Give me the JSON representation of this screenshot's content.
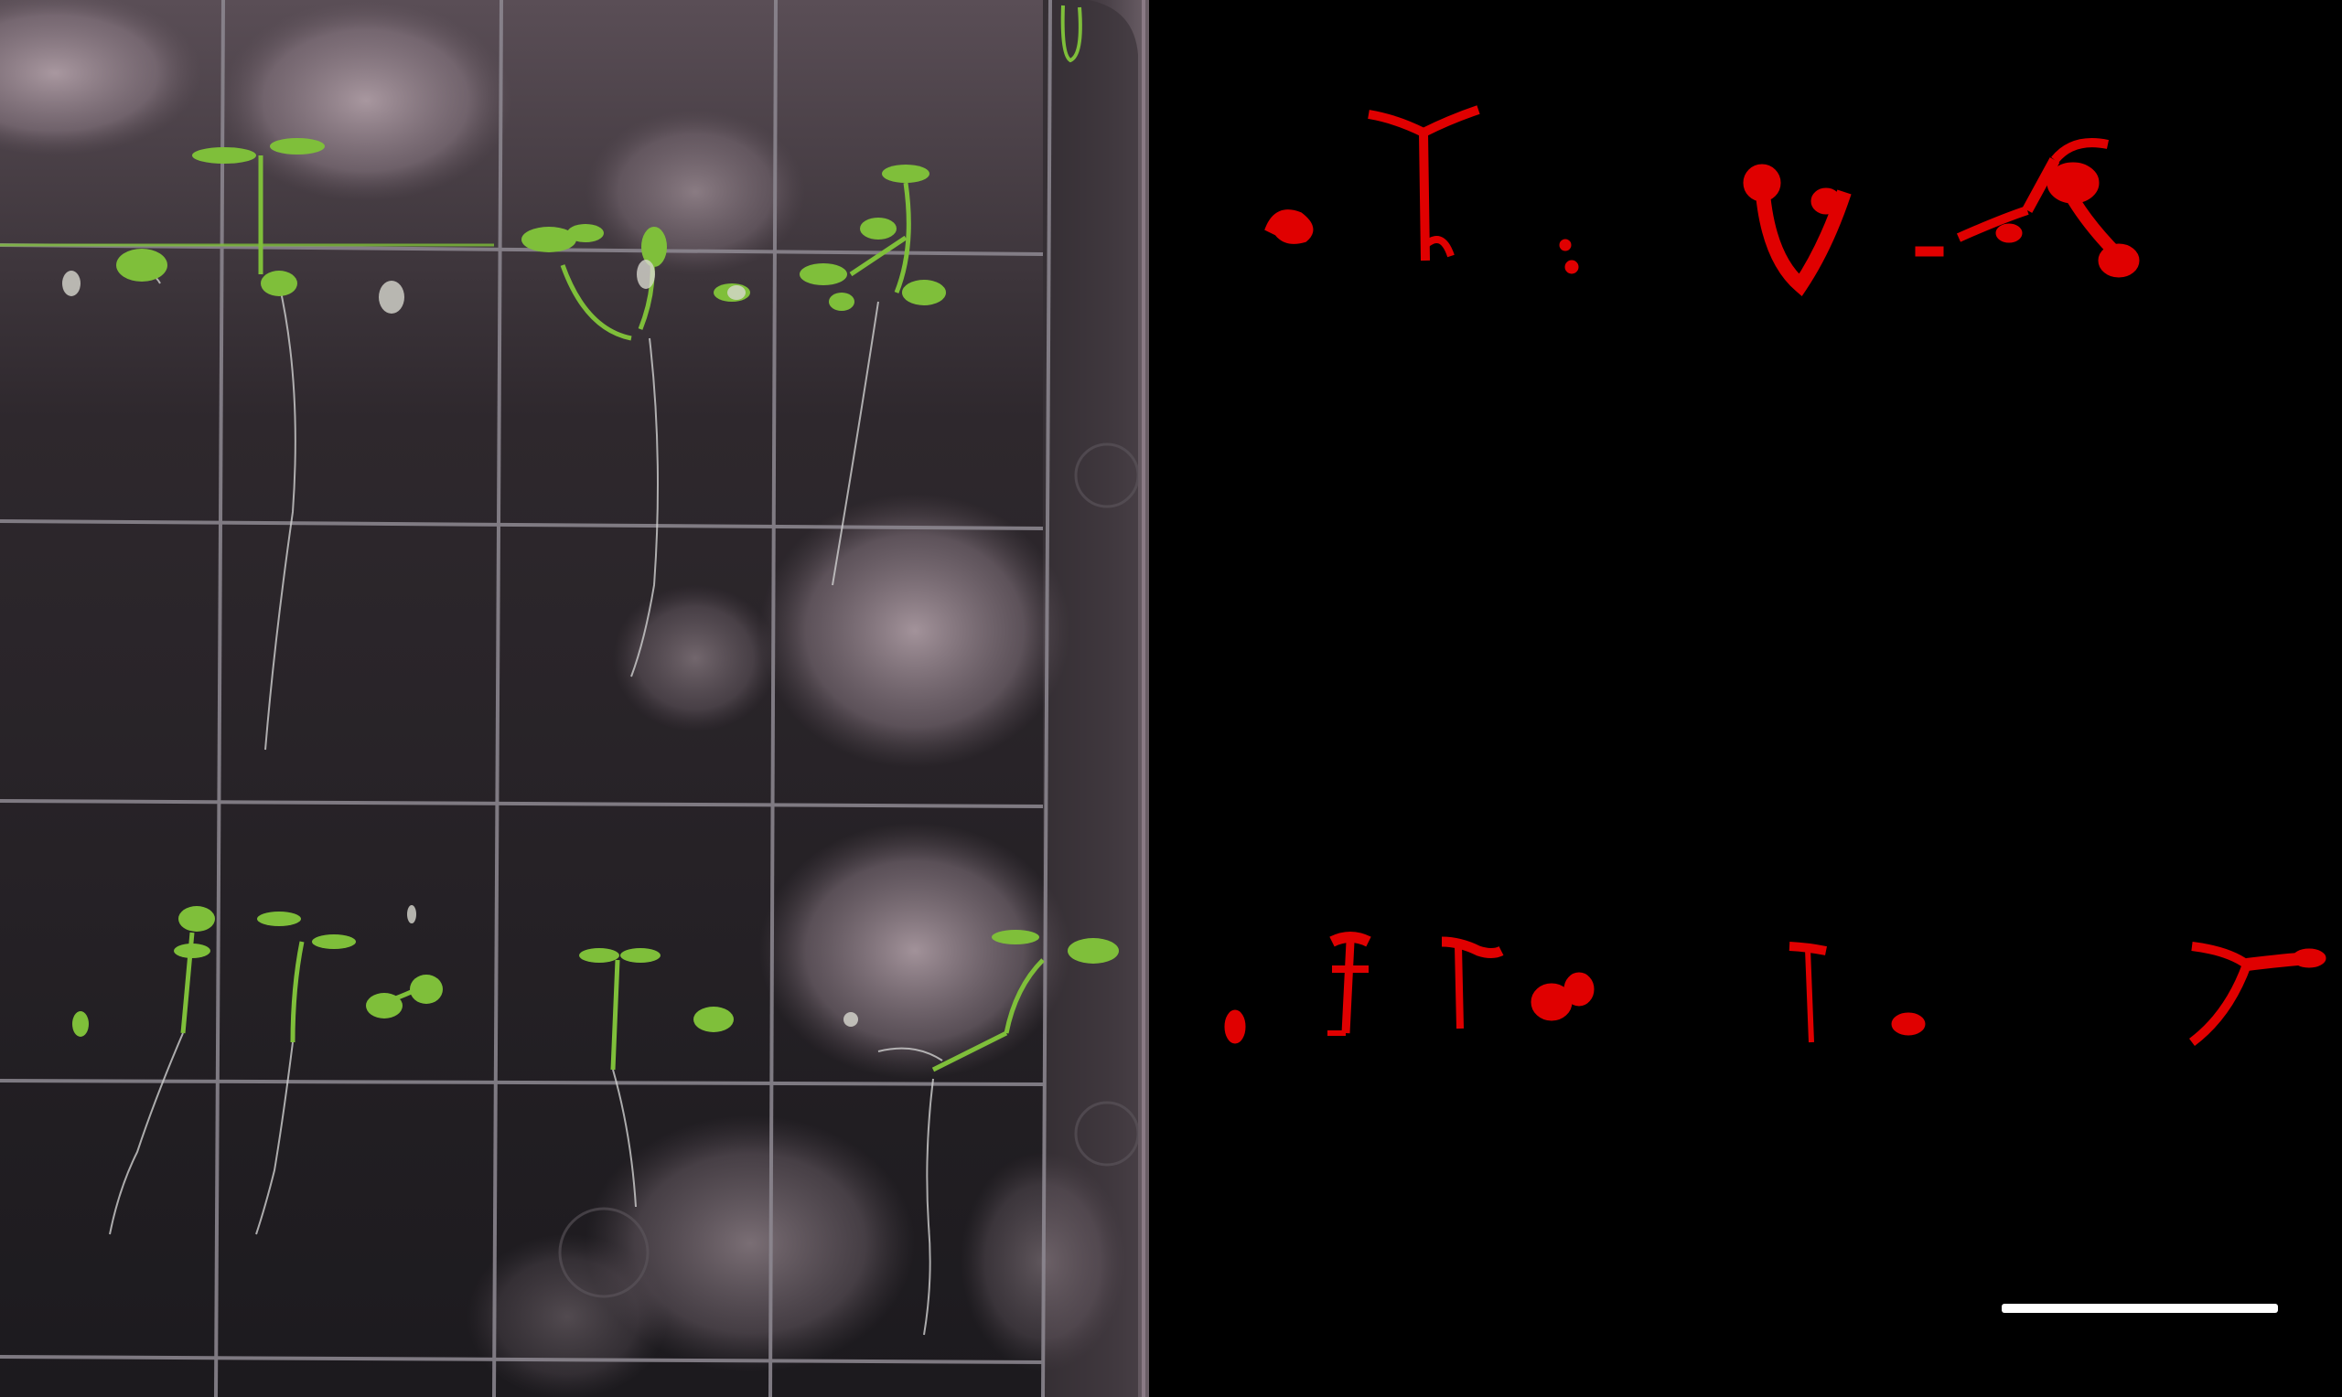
{
  "figure": {
    "panels": [
      {
        "id": "photo",
        "description_kind": "plate-photograph"
      },
      {
        "id": "mask",
        "description_kind": "segmentation-mask"
      }
    ]
  },
  "photo": {
    "plate_tint": "#3a3238",
    "grid_color": "#8f8a93",
    "plant_color": "#7fbf3a",
    "root_color": "#cfcfcf",
    "glare_color": "#a28f99"
  },
  "mask": {
    "background_color": "#000000",
    "segment_color": "#e00000",
    "scale_bar_color": "#ffffff"
  }
}
